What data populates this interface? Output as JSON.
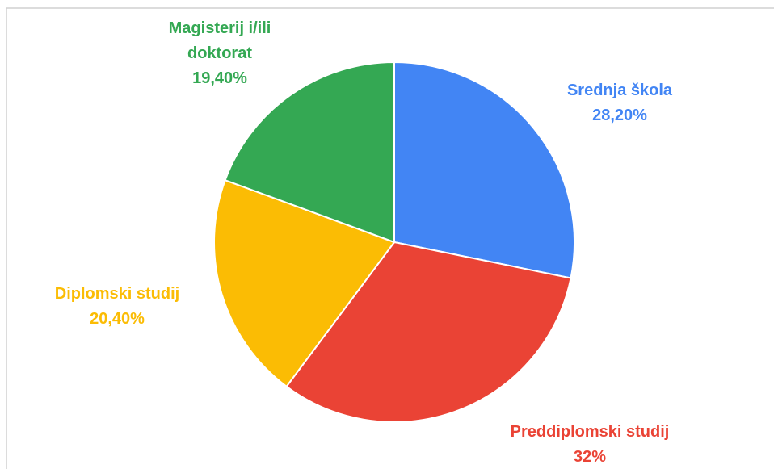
{
  "chart_data": {
    "type": "pie",
    "categories": [
      "Srednja škola",
      "Preddiplomski studij",
      "Diplomski studij",
      "Magisterij i/ili doktorat"
    ],
    "values": [
      28.2,
      32,
      20.4,
      19.4
    ],
    "value_labels": [
      "28,20%",
      "32%",
      "20,40%",
      "19,40%"
    ],
    "colors": [
      "#4285f4",
      "#ea4335",
      "#fbbc04",
      "#34a853"
    ]
  }
}
